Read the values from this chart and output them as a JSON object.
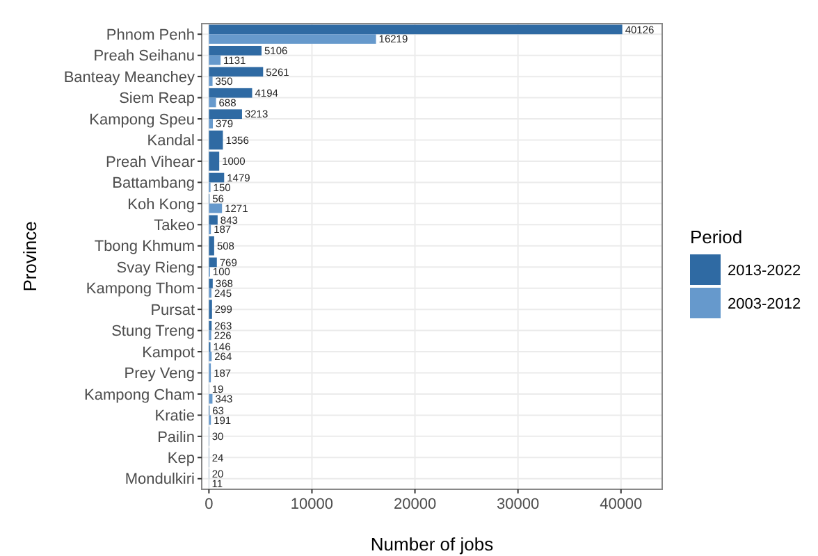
{
  "chart_data": {
    "type": "bar",
    "orientation": "horizontal",
    "xlabel": "Number of jobs",
    "ylabel": "Province",
    "legend_title": "Period",
    "legend": "right",
    "grid": true,
    "data_labels": true,
    "categories": [
      "Phnom Penh",
      "Preah Seihanu",
      "Banteay Meanchey",
      "Siem Reap",
      "Kampong Speu",
      "Kandal",
      "Preah Vihear",
      "Battambang",
      "Koh Kong",
      "Takeo",
      "Tbong Khmum",
      "Svay Rieng",
      "Kampong Thom",
      "Pursat",
      "Stung Treng",
      "Kampot",
      "Prey Veng",
      "Kampong Cham",
      "Kratie",
      "Pailin",
      "Kep",
      "Mondulkiri"
    ],
    "xlim": [
      -700,
      44000
    ],
    "xticks": [
      0,
      10000,
      20000,
      30000,
      40000
    ],
    "series": [
      {
        "name": "2013-2022",
        "color": "#2f6aa3",
        "values": [
          40126,
          5106,
          5261,
          4194,
          3213,
          1356,
          1000,
          1479,
          56,
          843,
          508,
          769,
          368,
          299,
          263,
          146,
          null,
          19,
          63,
          30,
          24,
          20
        ]
      },
      {
        "name": "2003-2012",
        "color": "#6699cc",
        "values": [
          16219,
          1131,
          350,
          688,
          379,
          null,
          null,
          150,
          1271,
          187,
          null,
          100,
          245,
          null,
          226,
          264,
          187,
          343,
          191,
          null,
          null,
          11
        ]
      }
    ]
  }
}
